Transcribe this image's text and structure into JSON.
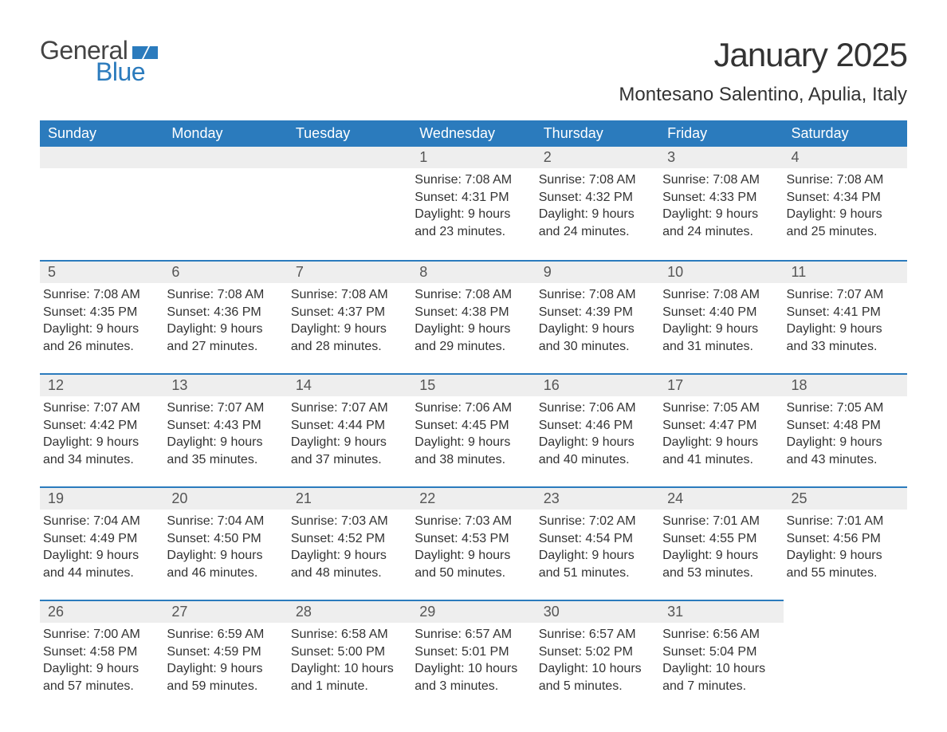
{
  "logo": {
    "text_general": "General",
    "text_blue": "Blue",
    "general_color": "#444444",
    "blue_color": "#2b7bbd",
    "flag_color": "#2b7bbd"
  },
  "header": {
    "month_title": "January 2025",
    "location": "Montesano Salentino, Apulia, Italy",
    "title_fontsize": 42,
    "location_fontsize": 24,
    "text_color": "#333333"
  },
  "calendar_style": {
    "header_bg": "#2b7bbd",
    "header_text_color": "#ffffff",
    "header_fontsize": 18,
    "day_number_bg": "#eeeeee",
    "day_number_color": "#555555",
    "day_number_fontsize": 18,
    "row_top_border_color": "#2b7bbd",
    "content_fontsize": 16,
    "content_color": "#333333",
    "background": "#ffffff"
  },
  "weekdays": [
    "Sunday",
    "Monday",
    "Tuesday",
    "Wednesday",
    "Thursday",
    "Friday",
    "Saturday"
  ],
  "weeks": [
    [
      null,
      null,
      null,
      {
        "day": "1",
        "sunrise": "Sunrise: 7:08 AM",
        "sunset": "Sunset: 4:31 PM",
        "daylight1": "Daylight: 9 hours",
        "daylight2": "and 23 minutes."
      },
      {
        "day": "2",
        "sunrise": "Sunrise: 7:08 AM",
        "sunset": "Sunset: 4:32 PM",
        "daylight1": "Daylight: 9 hours",
        "daylight2": "and 24 minutes."
      },
      {
        "day": "3",
        "sunrise": "Sunrise: 7:08 AM",
        "sunset": "Sunset: 4:33 PM",
        "daylight1": "Daylight: 9 hours",
        "daylight2": "and 24 minutes."
      },
      {
        "day": "4",
        "sunrise": "Sunrise: 7:08 AM",
        "sunset": "Sunset: 4:34 PM",
        "daylight1": "Daylight: 9 hours",
        "daylight2": "and 25 minutes."
      }
    ],
    [
      {
        "day": "5",
        "sunrise": "Sunrise: 7:08 AM",
        "sunset": "Sunset: 4:35 PM",
        "daylight1": "Daylight: 9 hours",
        "daylight2": "and 26 minutes."
      },
      {
        "day": "6",
        "sunrise": "Sunrise: 7:08 AM",
        "sunset": "Sunset: 4:36 PM",
        "daylight1": "Daylight: 9 hours",
        "daylight2": "and 27 minutes."
      },
      {
        "day": "7",
        "sunrise": "Sunrise: 7:08 AM",
        "sunset": "Sunset: 4:37 PM",
        "daylight1": "Daylight: 9 hours",
        "daylight2": "and 28 minutes."
      },
      {
        "day": "8",
        "sunrise": "Sunrise: 7:08 AM",
        "sunset": "Sunset: 4:38 PM",
        "daylight1": "Daylight: 9 hours",
        "daylight2": "and 29 minutes."
      },
      {
        "day": "9",
        "sunrise": "Sunrise: 7:08 AM",
        "sunset": "Sunset: 4:39 PM",
        "daylight1": "Daylight: 9 hours",
        "daylight2": "and 30 minutes."
      },
      {
        "day": "10",
        "sunrise": "Sunrise: 7:08 AM",
        "sunset": "Sunset: 4:40 PM",
        "daylight1": "Daylight: 9 hours",
        "daylight2": "and 31 minutes."
      },
      {
        "day": "11",
        "sunrise": "Sunrise: 7:07 AM",
        "sunset": "Sunset: 4:41 PM",
        "daylight1": "Daylight: 9 hours",
        "daylight2": "and 33 minutes."
      }
    ],
    [
      {
        "day": "12",
        "sunrise": "Sunrise: 7:07 AM",
        "sunset": "Sunset: 4:42 PM",
        "daylight1": "Daylight: 9 hours",
        "daylight2": "and 34 minutes."
      },
      {
        "day": "13",
        "sunrise": "Sunrise: 7:07 AM",
        "sunset": "Sunset: 4:43 PM",
        "daylight1": "Daylight: 9 hours",
        "daylight2": "and 35 minutes."
      },
      {
        "day": "14",
        "sunrise": "Sunrise: 7:07 AM",
        "sunset": "Sunset: 4:44 PM",
        "daylight1": "Daylight: 9 hours",
        "daylight2": "and 37 minutes."
      },
      {
        "day": "15",
        "sunrise": "Sunrise: 7:06 AM",
        "sunset": "Sunset: 4:45 PM",
        "daylight1": "Daylight: 9 hours",
        "daylight2": "and 38 minutes."
      },
      {
        "day": "16",
        "sunrise": "Sunrise: 7:06 AM",
        "sunset": "Sunset: 4:46 PM",
        "daylight1": "Daylight: 9 hours",
        "daylight2": "and 40 minutes."
      },
      {
        "day": "17",
        "sunrise": "Sunrise: 7:05 AM",
        "sunset": "Sunset: 4:47 PM",
        "daylight1": "Daylight: 9 hours",
        "daylight2": "and 41 minutes."
      },
      {
        "day": "18",
        "sunrise": "Sunrise: 7:05 AM",
        "sunset": "Sunset: 4:48 PM",
        "daylight1": "Daylight: 9 hours",
        "daylight2": "and 43 minutes."
      }
    ],
    [
      {
        "day": "19",
        "sunrise": "Sunrise: 7:04 AM",
        "sunset": "Sunset: 4:49 PM",
        "daylight1": "Daylight: 9 hours",
        "daylight2": "and 44 minutes."
      },
      {
        "day": "20",
        "sunrise": "Sunrise: 7:04 AM",
        "sunset": "Sunset: 4:50 PM",
        "daylight1": "Daylight: 9 hours",
        "daylight2": "and 46 minutes."
      },
      {
        "day": "21",
        "sunrise": "Sunrise: 7:03 AM",
        "sunset": "Sunset: 4:52 PM",
        "daylight1": "Daylight: 9 hours",
        "daylight2": "and 48 minutes."
      },
      {
        "day": "22",
        "sunrise": "Sunrise: 7:03 AM",
        "sunset": "Sunset: 4:53 PM",
        "daylight1": "Daylight: 9 hours",
        "daylight2": "and 50 minutes."
      },
      {
        "day": "23",
        "sunrise": "Sunrise: 7:02 AM",
        "sunset": "Sunset: 4:54 PM",
        "daylight1": "Daylight: 9 hours",
        "daylight2": "and 51 minutes."
      },
      {
        "day": "24",
        "sunrise": "Sunrise: 7:01 AM",
        "sunset": "Sunset: 4:55 PM",
        "daylight1": "Daylight: 9 hours",
        "daylight2": "and 53 minutes."
      },
      {
        "day": "25",
        "sunrise": "Sunrise: 7:01 AM",
        "sunset": "Sunset: 4:56 PM",
        "daylight1": "Daylight: 9 hours",
        "daylight2": "and 55 minutes."
      }
    ],
    [
      {
        "day": "26",
        "sunrise": "Sunrise: 7:00 AM",
        "sunset": "Sunset: 4:58 PM",
        "daylight1": "Daylight: 9 hours",
        "daylight2": "and 57 minutes."
      },
      {
        "day": "27",
        "sunrise": "Sunrise: 6:59 AM",
        "sunset": "Sunset: 4:59 PM",
        "daylight1": "Daylight: 9 hours",
        "daylight2": "and 59 minutes."
      },
      {
        "day": "28",
        "sunrise": "Sunrise: 6:58 AM",
        "sunset": "Sunset: 5:00 PM",
        "daylight1": "Daylight: 10 hours",
        "daylight2": "and 1 minute."
      },
      {
        "day": "29",
        "sunrise": "Sunrise: 6:57 AM",
        "sunset": "Sunset: 5:01 PM",
        "daylight1": "Daylight: 10 hours",
        "daylight2": "and 3 minutes."
      },
      {
        "day": "30",
        "sunrise": "Sunrise: 6:57 AM",
        "sunset": "Sunset: 5:02 PM",
        "daylight1": "Daylight: 10 hours",
        "daylight2": "and 5 minutes."
      },
      {
        "day": "31",
        "sunrise": "Sunrise: 6:56 AM",
        "sunset": "Sunset: 5:04 PM",
        "daylight1": "Daylight: 10 hours",
        "daylight2": "and 7 minutes."
      },
      null
    ]
  ]
}
